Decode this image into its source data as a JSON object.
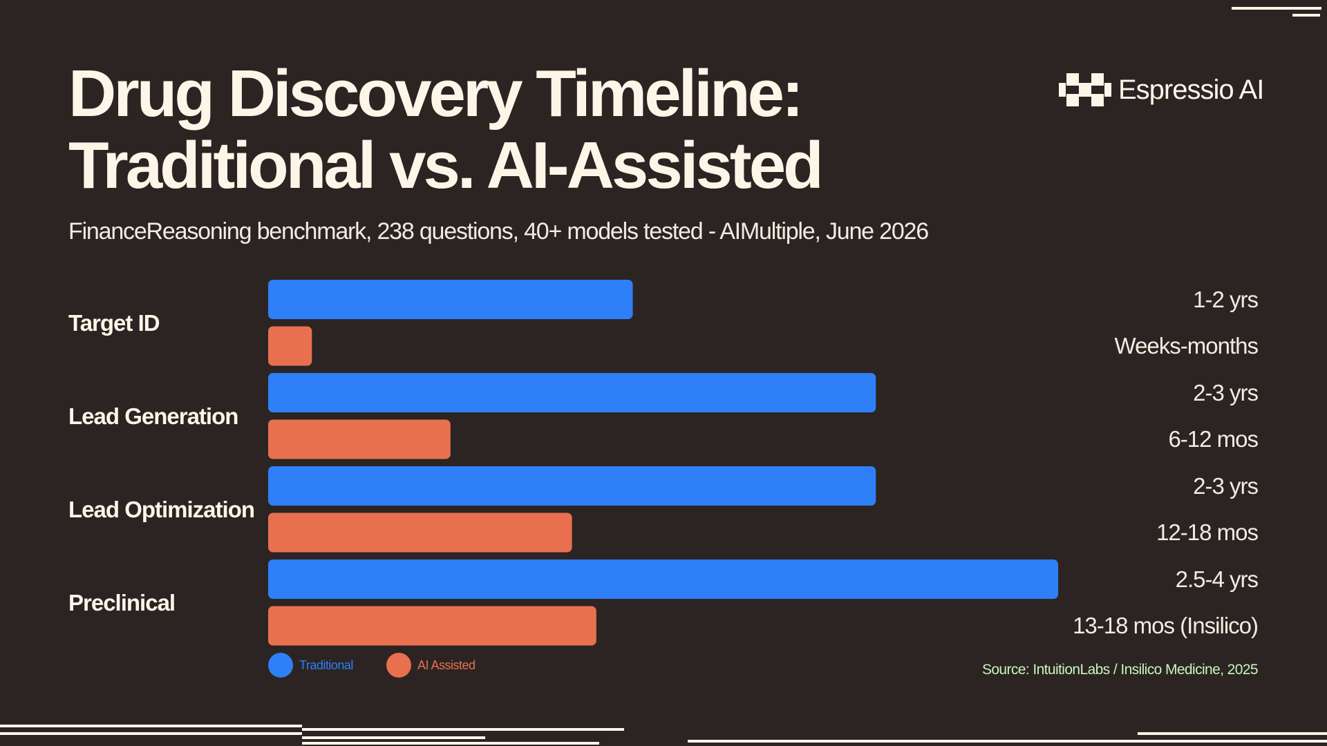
{
  "title_line1": "Drug Discovery Timeline:",
  "title_line2": "Traditional vs. AI-Assisted",
  "subtitle": "FinanceReasoning benchmark, 238 questions, 40+ models tested - AIMultiple, June 2026",
  "brand": {
    "name": "Espressio AI",
    "icon": "espressio-logo-icon"
  },
  "source": "Source: IntuitionLabs / Insilico Medicine, 2025",
  "colors": {
    "background": "#2c2423",
    "traditional": "#2e7ff8",
    "ai_assisted": "#e8704f",
    "text": "#fdf6e8",
    "source": "#c7f5bc"
  },
  "chart_data": {
    "type": "bar",
    "orientation": "horizontal",
    "categories": [
      "Target ID",
      "Lead Generation",
      "Lead Optimization",
      "Preclinical"
    ],
    "series": [
      {
        "name": "Traditional",
        "color": "#2e7ff8",
        "values": [
          1.5,
          2.5,
          2.5,
          3.25
        ],
        "labels": [
          "1-2 yrs",
          "2-3 yrs",
          "2-3 yrs",
          "2.5-4 yrs"
        ]
      },
      {
        "name": "AI Assisted",
        "legend_label": "AI-Assisted",
        "color": "#e8704f",
        "values": [
          0.18,
          0.75,
          1.25,
          1.35
        ],
        "labels": [
          "Weeks-months",
          "6-12 mos",
          "12-18 mos",
          "13-18 mos (Insilico)"
        ]
      }
    ],
    "xlim": [
      0,
      3.25
    ],
    "grid": false,
    "legend_position": "bottom-left"
  }
}
